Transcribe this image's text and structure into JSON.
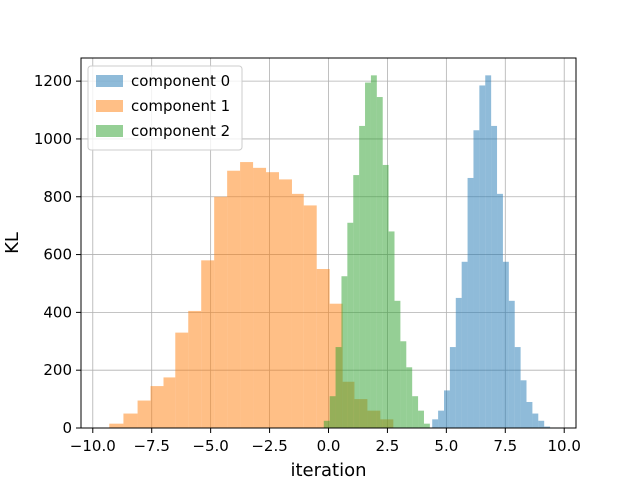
{
  "chart_data": {
    "type": "bar",
    "title": "",
    "xlabel": "iteration",
    "ylabel": "KL",
    "xlim": [
      -10.5,
      10.5
    ],
    "ylim": [
      0,
      1280
    ],
    "grid": true,
    "legend_position": "top-left",
    "x_ticks": [
      -10.0,
      -7.5,
      -5.0,
      -2.5,
      0.0,
      2.5,
      5.0,
      7.5,
      10.0
    ],
    "x_tick_labels": [
      "−10.0",
      "−7.5",
      "−5.0",
      "−2.5",
      "0.0",
      "2.5",
      "5.0",
      "7.5",
      "10.0"
    ],
    "y_ticks": [
      0,
      200,
      400,
      600,
      800,
      1000,
      1200
    ],
    "y_tick_labels": [
      "0",
      "200",
      "400",
      "600",
      "800",
      "1000",
      "1200"
    ],
    "series": [
      {
        "name": "component 1",
        "color": "#ff7f0e",
        "opacity": 0.5,
        "bin_edges": [
          -9.3,
          -8.7,
          -8.1,
          -7.55,
          -7.0,
          -6.5,
          -5.95,
          -5.4,
          -4.85,
          -4.3,
          -3.75,
          -3.2,
          -2.65,
          -2.1,
          -1.55,
          -1.05,
          -0.5,
          0.05,
          0.6,
          1.1,
          1.65,
          2.2,
          2.75
        ],
        "counts": [
          15,
          50,
          95,
          145,
          175,
          330,
          405,
          580,
          800,
          890,
          920,
          900,
          885,
          860,
          810,
          770,
          550,
          430,
          160,
          100,
          60,
          30
        ]
      },
      {
        "name": "component 2",
        "color": "#2ca02c",
        "opacity": 0.5,
        "bin_edges": [
          -0.2,
          0.05,
          0.3,
          0.55,
          0.8,
          1.05,
          1.3,
          1.55,
          1.8,
          2.05,
          2.3,
          2.55,
          2.8,
          3.05,
          3.3,
          3.55,
          3.8,
          4.05,
          4.3
        ],
        "counts": [
          25,
          110,
          280,
          525,
          710,
          875,
          1045,
          1195,
          1220,
          1145,
          910,
          680,
          440,
          300,
          210,
          110,
          60,
          15
        ]
      },
      {
        "name": "component 0",
        "color": "#1f77b4",
        "opacity": 0.5,
        "bin_edges": [
          4.4,
          4.65,
          4.9,
          5.15,
          5.4,
          5.65,
          5.9,
          6.15,
          6.4,
          6.65,
          6.9,
          7.15,
          7.4,
          7.65,
          7.9,
          8.15,
          8.4,
          8.65,
          8.9,
          9.15,
          9.4
        ],
        "counts": [
          30,
          60,
          130,
          280,
          450,
          575,
          865,
          1030,
          1185,
          1220,
          1045,
          810,
          575,
          440,
          280,
          165,
          90,
          50,
          25,
          5
        ]
      }
    ],
    "legend_order": [
      "component 0",
      "component 1",
      "component 2"
    ]
  }
}
